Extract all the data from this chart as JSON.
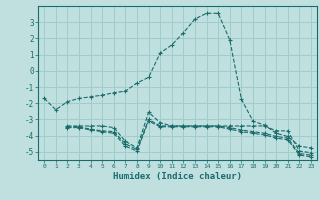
{
  "title": "",
  "xlabel": "Humidex (Indice chaleur)",
  "ylabel": "",
  "background_color": "#c0e0e0",
  "grid_color": "#a0cccc",
  "line_color": "#1a6b6b",
  "xlim": [
    -0.5,
    23.5
  ],
  "ylim": [
    -5.5,
    4.0
  ],
  "yticks": [
    -5,
    -4,
    -3,
    -2,
    -1,
    0,
    1,
    2,
    3
  ],
  "xticks": [
    0,
    1,
    2,
    3,
    4,
    5,
    6,
    7,
    8,
    9,
    10,
    11,
    12,
    13,
    14,
    15,
    16,
    17,
    18,
    19,
    20,
    21,
    22,
    23
  ],
  "series": [
    {
      "x": [
        0,
        1,
        2,
        3,
        4,
        5,
        6,
        7,
        8,
        9,
        10,
        11,
        12,
        13,
        14,
        15,
        16,
        17,
        18,
        19,
        20,
        21,
        22,
        23
      ],
      "y": [
        -1.7,
        -2.4,
        -1.9,
        -1.7,
        -1.6,
        -1.5,
        -1.35,
        -1.25,
        -0.75,
        -0.4,
        1.1,
        1.6,
        2.35,
        3.2,
        3.55,
        3.55,
        1.9,
        -1.75,
        -3.1,
        -3.35,
        -3.85,
        -4.05,
        -4.65,
        -4.75
      ]
    },
    {
      "x": [
        2,
        3,
        4,
        5,
        6,
        7,
        8,
        9,
        10,
        11,
        12,
        13,
        14,
        15,
        16,
        17,
        18,
        19,
        20,
        21,
        22,
        23
      ],
      "y": [
        -3.4,
        -3.4,
        -3.4,
        -3.4,
        -3.5,
        -4.35,
        -4.75,
        -2.55,
        -3.2,
        -3.4,
        -3.4,
        -3.4,
        -3.4,
        -3.4,
        -3.4,
        -3.4,
        -3.4,
        -3.4,
        -3.7,
        -3.7,
        -4.95,
        -5.05
      ]
    },
    {
      "x": [
        2,
        3,
        4,
        5,
        6,
        7,
        8,
        9,
        10,
        11,
        12,
        13,
        14,
        15,
        16,
        17,
        18,
        19,
        20,
        21,
        22,
        23
      ],
      "y": [
        -3.45,
        -3.45,
        -3.6,
        -3.7,
        -3.75,
        -4.5,
        -4.85,
        -3.0,
        -3.4,
        -3.4,
        -3.4,
        -3.4,
        -3.4,
        -3.4,
        -3.5,
        -3.65,
        -3.75,
        -3.85,
        -4.05,
        -4.15,
        -5.1,
        -5.2
      ]
    },
    {
      "x": [
        2,
        3,
        4,
        5,
        6,
        7,
        8,
        9,
        10,
        11,
        12,
        13,
        14,
        15,
        16,
        17,
        18,
        19,
        20,
        21,
        22,
        23
      ],
      "y": [
        -3.5,
        -3.5,
        -3.65,
        -3.75,
        -3.85,
        -4.65,
        -4.95,
        -3.1,
        -3.45,
        -3.45,
        -3.45,
        -3.45,
        -3.45,
        -3.45,
        -3.6,
        -3.75,
        -3.85,
        -3.95,
        -4.15,
        -4.25,
        -5.2,
        -5.3
      ]
    }
  ]
}
